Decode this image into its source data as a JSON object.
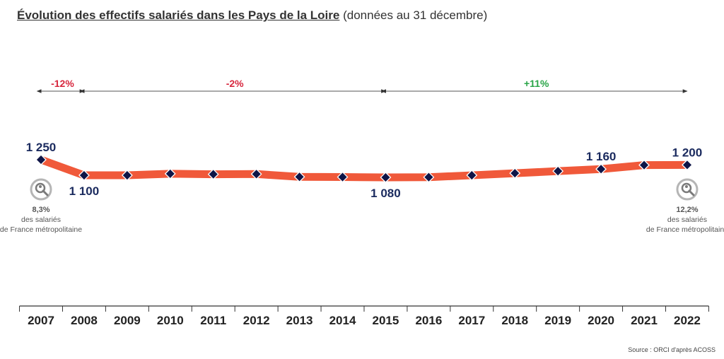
{
  "title": "Évolution des effectifs salariés dans les Pays de la Loire",
  "subtitle": "(données au 31 décembre)",
  "source": "Source : ORCI d'après ACOSS",
  "colors": {
    "line": "#f0593a",
    "marker": "#0f1547",
    "label": "#1a2a5e",
    "negative": "#d7263d",
    "positive": "#2aa548",
    "note": "#555555",
    "axis": "#333333"
  },
  "chart_data": {
    "type": "line",
    "categories": [
      "2007",
      "2008",
      "2009",
      "2010",
      "2011",
      "2012",
      "2013",
      "2014",
      "2015",
      "2016",
      "2017",
      "2018",
      "2019",
      "2020",
      "2021",
      "2022"
    ],
    "values": [
      1250,
      1100,
      1100,
      1115,
      1110,
      1112,
      1085,
      1083,
      1080,
      1082,
      1100,
      1120,
      1140,
      1160,
      1198,
      1200
    ],
    "ylim": [
      1000,
      1300
    ],
    "data_labels": [
      {
        "year": "2007",
        "text": "1 250",
        "pos": "above"
      },
      {
        "year": "2008",
        "text": "1 100",
        "pos": "below"
      },
      {
        "year": "2015",
        "text": "1 080",
        "pos": "below"
      },
      {
        "year": "2020",
        "text": "1 160",
        "pos": "above"
      },
      {
        "year": "2022",
        "text": "1 200",
        "pos": "above"
      }
    ],
    "periods": [
      {
        "from": "2007",
        "to": "2008",
        "label": "-12%",
        "tone": "negative"
      },
      {
        "from": "2008",
        "to": "2015",
        "label": "-2%",
        "tone": "negative"
      },
      {
        "from": "2015",
        "to": "2022",
        "label": "+11%",
        "tone": "positive"
      }
    ],
    "notes": [
      {
        "year": "2007",
        "icon": "magnifier-people-icon",
        "lines": [
          "8,3%",
          "des salariés",
          "de France métropolitaine"
        ]
      },
      {
        "year": "2022",
        "icon": "magnifier-people-icon",
        "lines": [
          "12,2%",
          "des salariés",
          "de France métropolitaine"
        ]
      }
    ]
  }
}
